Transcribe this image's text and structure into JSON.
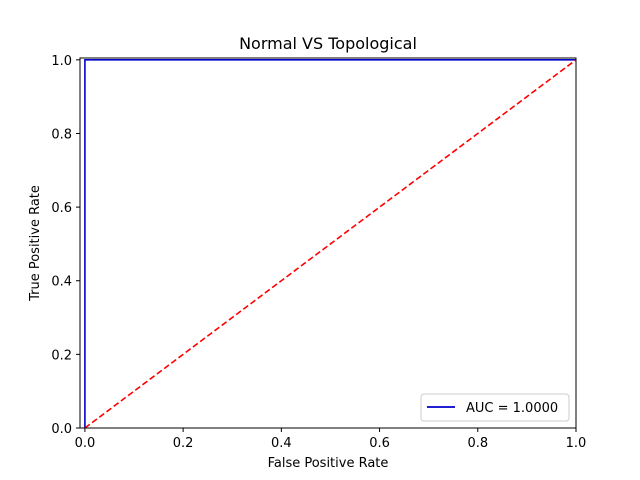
{
  "chart_data": {
    "type": "line",
    "title": "Normal VS Topological",
    "xlabel": "False Positive Rate",
    "ylabel": "True Positive Rate",
    "xlim": [
      -0.01,
      1.0
    ],
    "ylim": [
      0.0,
      1.005
    ],
    "x_ticks": [
      "0.0",
      "0.2",
      "0.4",
      "0.6",
      "0.8",
      "1.0"
    ],
    "y_ticks": [
      "0.0",
      "0.2",
      "0.4",
      "0.6",
      "0.8",
      "1.0"
    ],
    "grid": false,
    "legend_position": "bottom-right",
    "series": [
      {
        "name": "AUC = 1.0000",
        "color": "#0000cc",
        "style": "solid",
        "points": [
          [
            0.0,
            0.0
          ],
          [
            0.0,
            1.0
          ],
          [
            1.0,
            1.0
          ]
        ]
      },
      {
        "color": "#ff0000",
        "style": "dashed",
        "points": [
          [
            0.0,
            0.0
          ],
          [
            1.0,
            1.0
          ]
        ]
      }
    ]
  }
}
